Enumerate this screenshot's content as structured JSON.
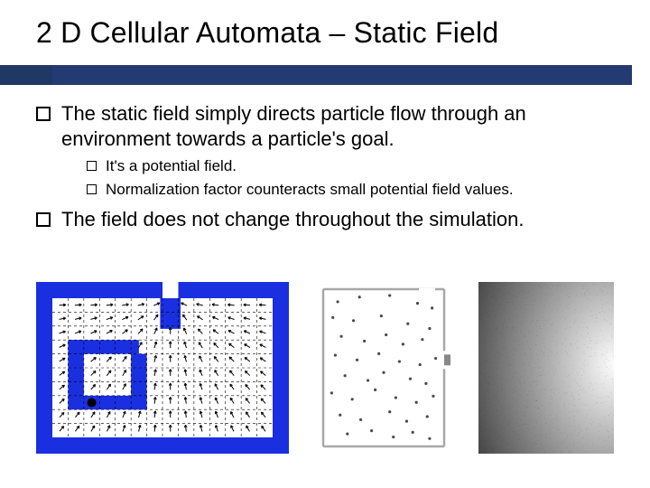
{
  "title": "2 D Cellular Automata – Static Field",
  "bullets": {
    "b0": "The static field simply directs particle flow through an environment towards a particle's goal.",
    "sub0": "It's a potential field.",
    "sub1": "Normalization factor counteracts small potential field values.",
    "b1": "The field does not change throughout the simulation."
  },
  "colors": {
    "maze_border": "#1a2fe0",
    "maze_bg": "#ffffff",
    "grid_line": "#000000",
    "scatter_frame": "#a8a8a8",
    "scatter_dot": "#4a4a4a",
    "gradient_start": "#fcfcfc",
    "gradient_end": "#3a3a3a",
    "title_bar_a": "#1f3864",
    "title_bar_b": "#243a72"
  },
  "maze": {
    "cols": 14,
    "rows": 10,
    "door_col": 7,
    "door_top_rows": 2,
    "inner_path_desc": "S-shaped corridor with arrow vectors pointing toward door",
    "particle_cell": [
      2,
      7
    ]
  },
  "scatter": {
    "points": [
      [
        0.12,
        0.08
      ],
      [
        0.3,
        0.05
      ],
      [
        0.55,
        0.04
      ],
      [
        0.78,
        0.09
      ],
      [
        0.9,
        0.12
      ],
      [
        0.08,
        0.18
      ],
      [
        0.25,
        0.2
      ],
      [
        0.48,
        0.17
      ],
      [
        0.7,
        0.22
      ],
      [
        0.88,
        0.25
      ],
      [
        0.15,
        0.3
      ],
      [
        0.34,
        0.33
      ],
      [
        0.52,
        0.29
      ],
      [
        0.66,
        0.35
      ],
      [
        0.82,
        0.32
      ],
      [
        0.1,
        0.42
      ],
      [
        0.28,
        0.45
      ],
      [
        0.46,
        0.41
      ],
      [
        0.63,
        0.46
      ],
      [
        0.8,
        0.48
      ],
      [
        0.93,
        0.44
      ],
      [
        0.18,
        0.55
      ],
      [
        0.37,
        0.58
      ],
      [
        0.5,
        0.53
      ],
      [
        0.72,
        0.57
      ],
      [
        0.85,
        0.6
      ],
      [
        0.07,
        0.66
      ],
      [
        0.24,
        0.7
      ],
      [
        0.43,
        0.64
      ],
      [
        0.6,
        0.69
      ],
      [
        0.77,
        0.72
      ],
      [
        0.91,
        0.68
      ],
      [
        0.14,
        0.8
      ],
      [
        0.31,
        0.83
      ],
      [
        0.55,
        0.78
      ],
      [
        0.69,
        0.84
      ],
      [
        0.86,
        0.81
      ],
      [
        0.2,
        0.92
      ],
      [
        0.4,
        0.9
      ],
      [
        0.58,
        0.94
      ],
      [
        0.74,
        0.91
      ],
      [
        0.88,
        0.95
      ]
    ],
    "door_y": 0.45
  }
}
